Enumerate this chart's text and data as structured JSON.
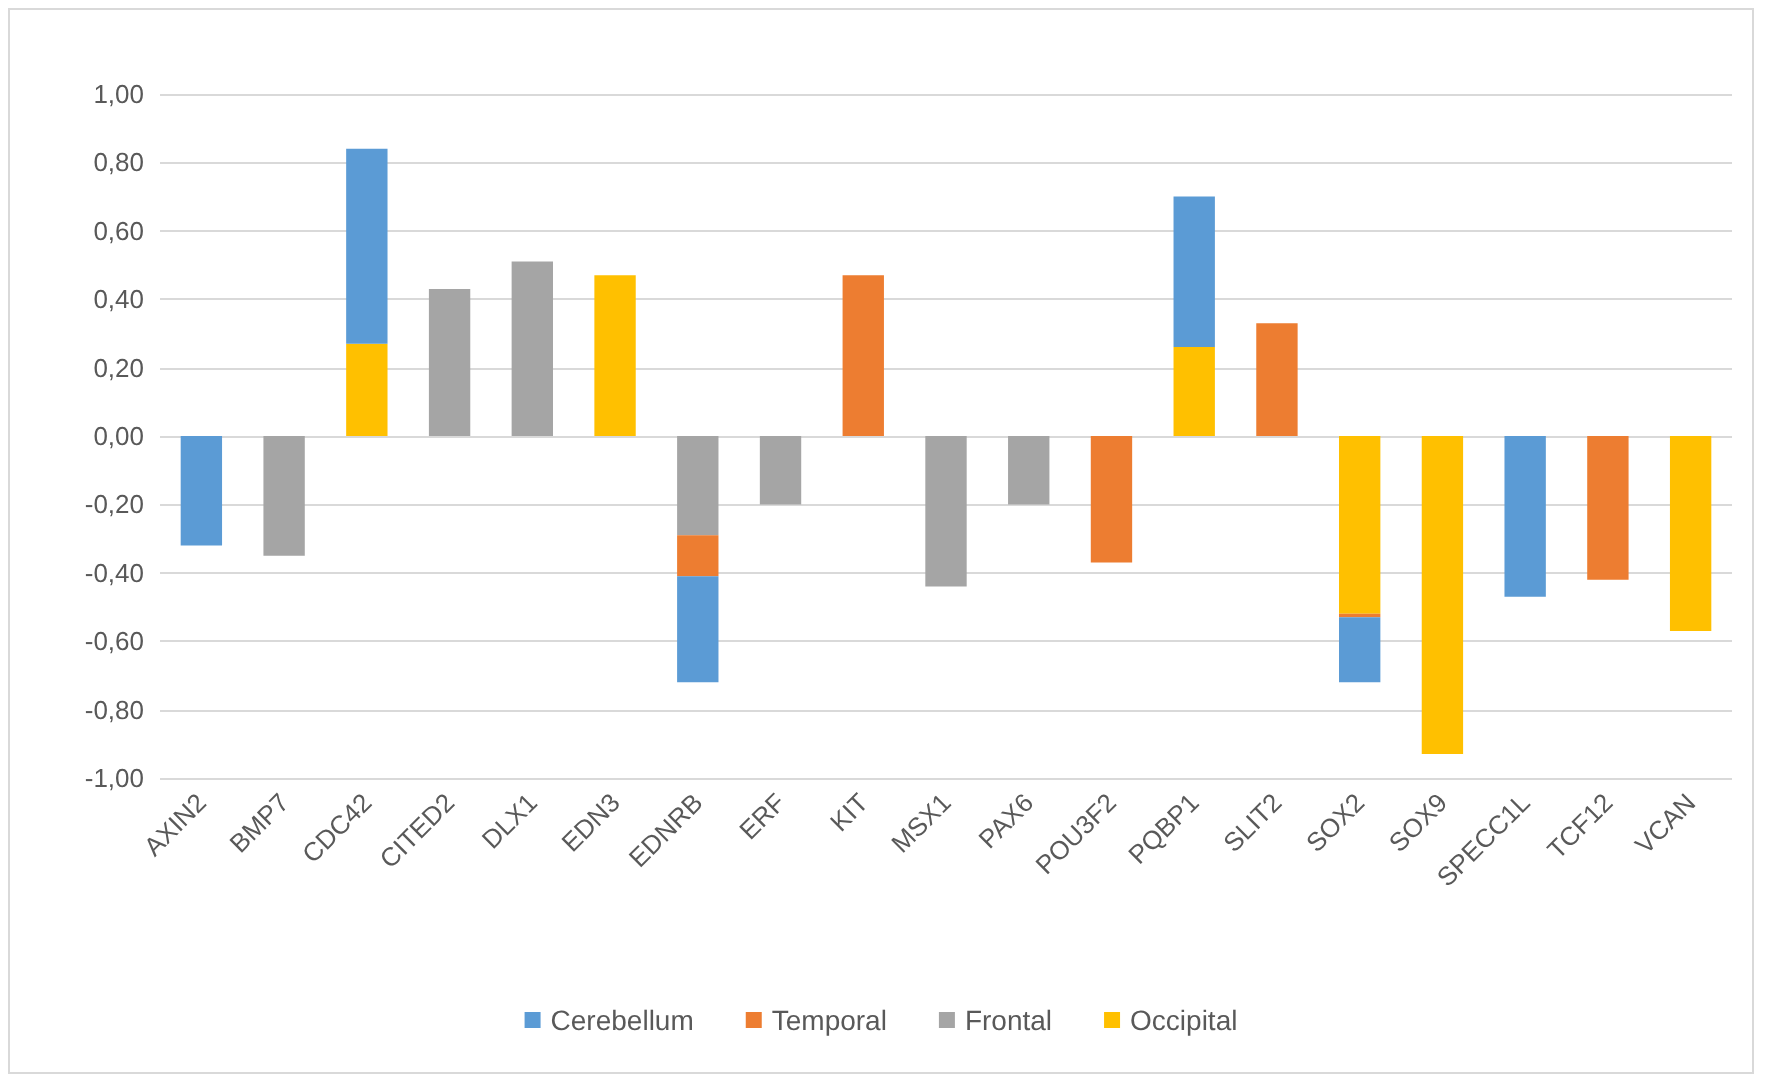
{
  "chart_data": {
    "type": "bar",
    "stacked": true,
    "categories": [
      "AXIN2",
      "BMP7",
      "CDC42",
      "CITED2",
      "DLX1",
      "EDN3",
      "EDNRB",
      "ERF",
      "KIT",
      "MSX1",
      "PAX6",
      "POU3F2",
      "PQBP1",
      "SLIT2",
      "SOX2",
      "SOX9",
      "SPECC1L",
      "TCF12",
      "VCAN"
    ],
    "series": [
      {
        "name": "Occipital",
        "color": "#ffc000",
        "values": [
          null,
          null,
          0.27,
          null,
          null,
          0.47,
          null,
          null,
          null,
          null,
          null,
          null,
          0.26,
          null,
          -0.52,
          -0.93,
          null,
          null,
          -0.57
        ]
      },
      {
        "name": "Frontal",
        "color": "#a5a5a5",
        "values": [
          null,
          -0.35,
          null,
          0.43,
          0.51,
          null,
          -0.29,
          -0.2,
          null,
          -0.44,
          -0.2,
          null,
          null,
          null,
          null,
          null,
          null,
          null,
          null
        ]
      },
      {
        "name": "Temporal",
        "color": "#ed7d31",
        "values": [
          null,
          null,
          null,
          null,
          null,
          null,
          -0.12,
          null,
          0.47,
          null,
          null,
          -0.37,
          null,
          0.33,
          -0.01,
          null,
          null,
          -0.42,
          null
        ]
      },
      {
        "name": "Cerebellum",
        "color": "#5b9bd5",
        "values": [
          -0.32,
          null,
          0.57,
          null,
          null,
          null,
          -0.31,
          null,
          null,
          null,
          null,
          null,
          0.44,
          null,
          -0.19,
          null,
          -0.47,
          null,
          null
        ]
      }
    ],
    "ylim": [
      -1,
      1
    ],
    "yticks": [
      {
        "value": -1,
        "label": "-1,00"
      },
      {
        "value": -0.8,
        "label": "-0,80"
      },
      {
        "value": -0.6,
        "label": "-0,60"
      },
      {
        "value": -0.4,
        "label": "-0,40"
      },
      {
        "value": -0.2,
        "label": "-0,20"
      },
      {
        "value": 0,
        "label": "0,00"
      },
      {
        "value": 0.2,
        "label": "0,20"
      },
      {
        "value": 0.4,
        "label": "0,40"
      },
      {
        "value": 0.6,
        "label": "0,60"
      },
      {
        "value": 0.8,
        "label": "0,80"
      },
      {
        "value": 1,
        "label": "1,00"
      }
    ],
    "grid": true,
    "legend": "bottom"
  }
}
